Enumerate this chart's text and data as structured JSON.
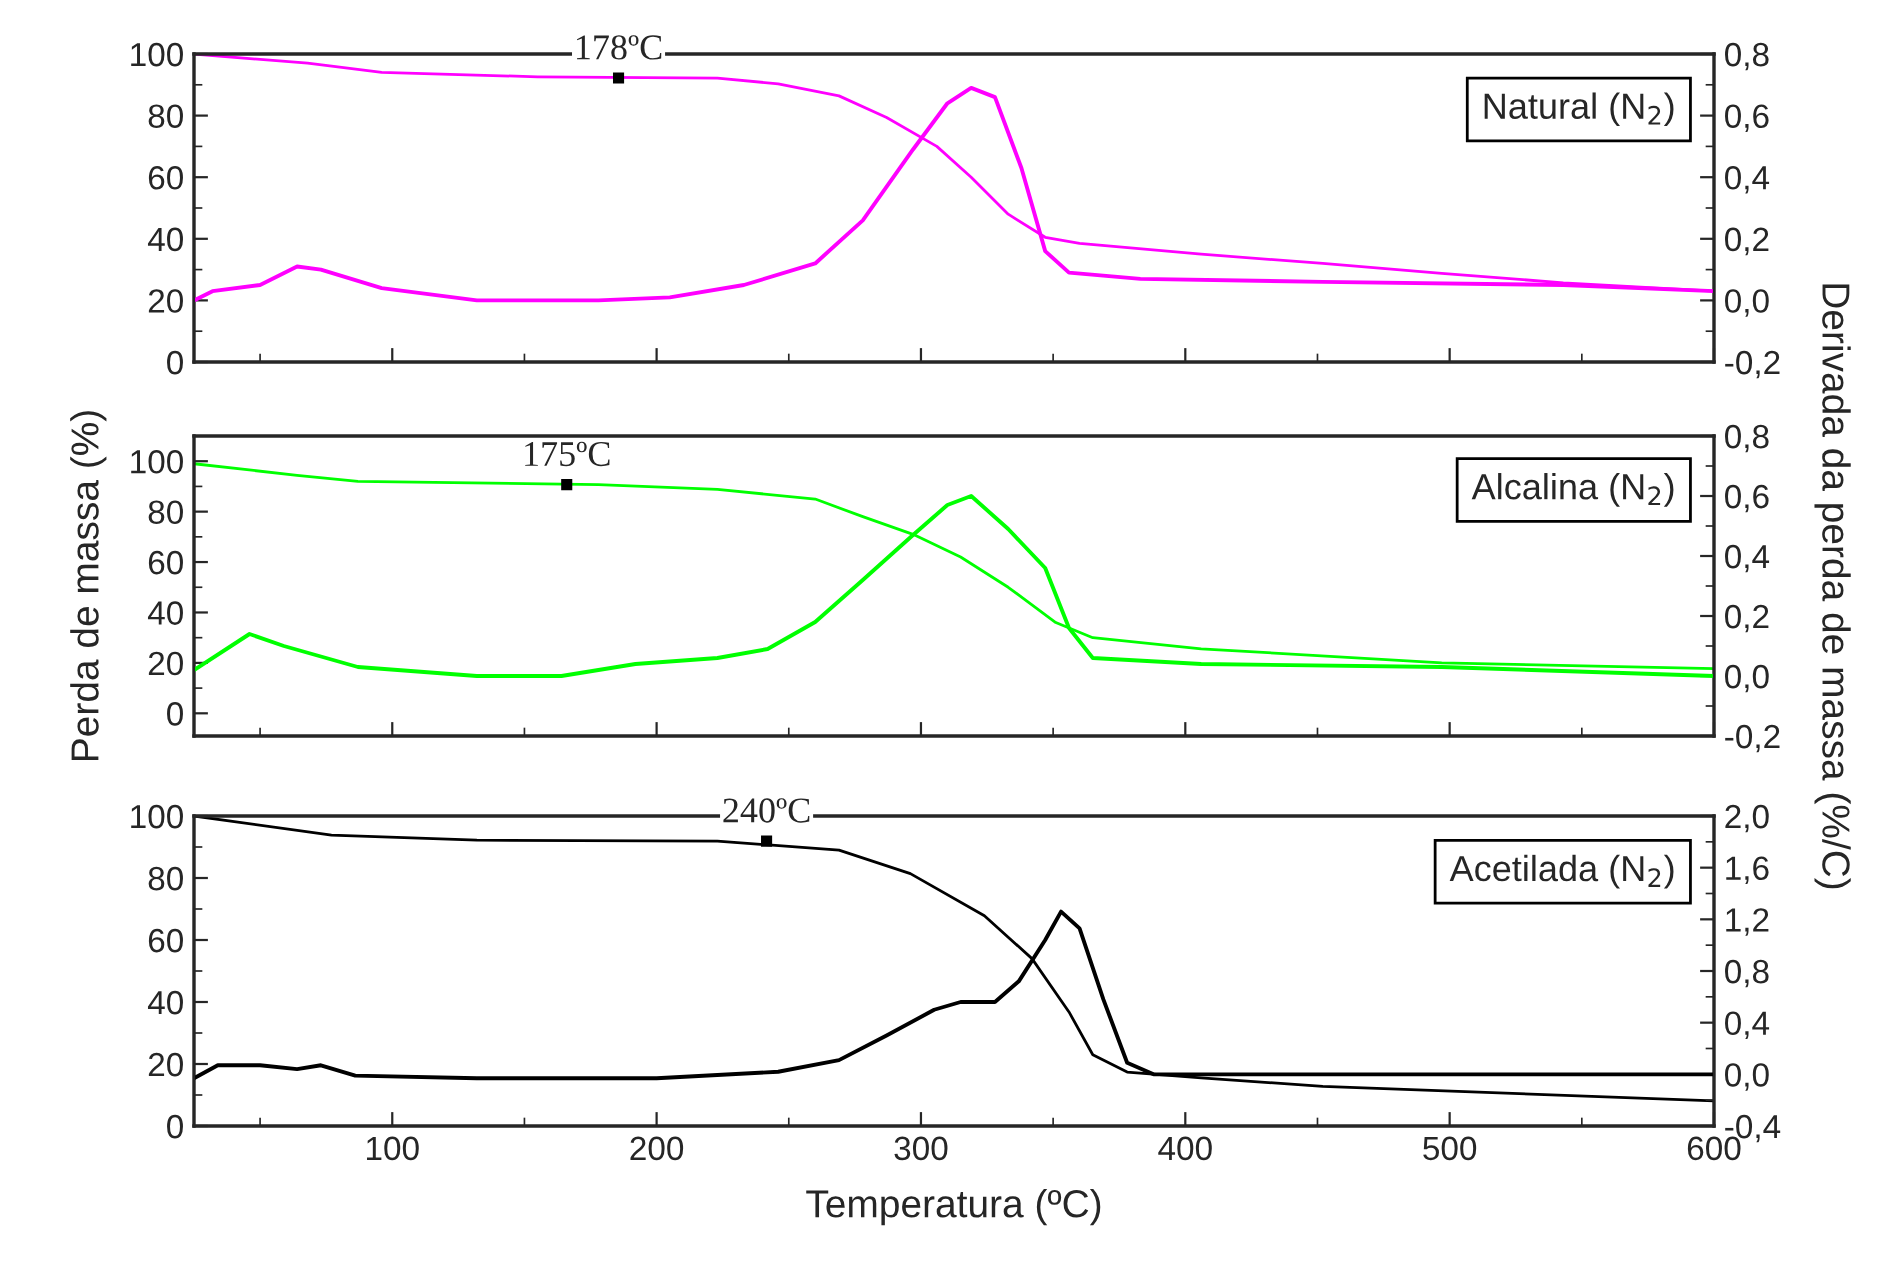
{
  "chart_data": [
    {
      "type": "line",
      "xlim": [
        25,
        600
      ],
      "xticks": [
        100,
        200,
        300,
        400,
        500,
        600
      ],
      "ylim": [
        0,
        100
      ],
      "yticks": [
        0,
        20,
        40,
        60,
        80,
        100
      ],
      "y2lim": [
        -0.2,
        0.8
      ],
      "y2ticks": [
        {
          "value": -0.2,
          "label": "-0,2"
        },
        {
          "value": 0,
          "label": "0,0"
        },
        {
          "value": 0.2,
          "label": "0,2"
        },
        {
          "value": 0.4,
          "label": "0,4"
        },
        {
          "value": 0.6,
          "label": "0,6"
        },
        {
          "value": 0.8,
          "label": "0,8"
        }
      ],
      "tick_labels": "y",
      "series": [
        {
          "color": "#ff00ff",
          "x": [
            25,
            68,
            96,
            155,
            223,
            246,
            269,
            287,
            306,
            319,
            333,
            347,
            360,
            406,
            452,
            497,
            543,
            600
          ],
          "values": [
            100,
            97,
            94,
            92.6,
            92.2,
            90.3,
            86.4,
            79.4,
            70,
            60,
            48,
            40.5,
            38.5,
            35,
            32,
            28.8,
            25.7,
            23
          ]
        },
        {
          "color": "#ff00ff",
          "axis": "y2",
          "x": [
            25,
            32,
            50,
            64,
            73,
            96,
            132,
            178,
            205,
            233,
            260,
            278,
            297,
            310,
            319,
            328,
            338,
            347,
            356,
            383,
            452,
            543,
            600
          ],
          "values": [
            0.0,
            0.03,
            0.05,
            0.11,
            0.1,
            0.04,
            0.0,
            0.0,
            0.01,
            0.05,
            0.12,
            0.26,
            0.49,
            0.64,
            0.69,
            0.66,
            0.43,
            0.16,
            0.09,
            0.07,
            0.06,
            0.05,
            0.03
          ]
        }
      ],
      "annotations": [
        {
          "text": "178ºC",
          "x": 185.6,
          "y": 92.2
        },
        "Natural (N$_{2}$)"
      ]
    },
    {
      "type": "line",
      "xlim": [
        25,
        600
      ],
      "xticks": [
        100,
        200,
        300,
        400,
        500,
        600
      ],
      "ylim": [
        -9,
        110
      ],
      "yticks": [
        0,
        20,
        40,
        60,
        80,
        100
      ],
      "y2lim": [
        -0.2,
        0.8
      ],
      "y2ticks": [
        {
          "value": -0.2,
          "label": "-0,2"
        },
        {
          "value": 0,
          "label": "0,0"
        },
        {
          "value": 0.2,
          "label": "0,2"
        },
        {
          "value": 0.4,
          "label": "0,4"
        },
        {
          "value": 0.6,
          "label": "0,6"
        },
        {
          "value": 0.8,
          "label": "0,8"
        }
      ],
      "tick_labels": "y",
      "ylabel": "Perda de massa (%)",
      "y2label": "Derivada da perda de massa (%/C)",
      "series": [
        {
          "color": "#00ff00",
          "x": [
            25,
            64,
            87,
            178,
            223,
            260,
            278,
            297,
            315,
            333,
            351,
            365,
            406,
            497,
            600
          ],
          "values": [
            99,
            94.4,
            92,
            90.7,
            88.8,
            85,
            78,
            71,
            62,
            50,
            36,
            30,
            25.6,
            20,
            17.7
          ]
        },
        {
          "color": "#00ff00",
          "axis": "y2",
          "x": [
            25,
            46,
            59,
            87,
            132,
            164,
            192,
            223,
            242,
            260,
            278,
            297,
            310,
            319,
            333,
            347,
            356,
            365,
            406,
            497,
            600
          ],
          "values": [
            0.02,
            0.14,
            0.1,
            0.03,
            0.0,
            0.0,
            0.04,
            0.06,
            0.09,
            0.18,
            0.32,
            0.47,
            0.57,
            0.6,
            0.49,
            0.36,
            0.16,
            0.06,
            0.04,
            0.03,
            0.0
          ]
        }
      ],
      "annotations": [
        {
          "text": "175ºC",
          "x": 166,
          "y": 90.7
        },
        "Alcalina (N$_{2}$)"
      ]
    },
    {
      "type": "line",
      "xlim": [
        25,
        600
      ],
      "xticks": [
        100,
        200,
        300,
        400,
        500,
        600
      ],
      "ylim": [
        0,
        100
      ],
      "yticks": [
        0,
        20,
        40,
        60,
        80,
        100
      ],
      "y2lim": [
        -0.4,
        2.0
      ],
      "y2ticks": [
        {
          "value": -0.4,
          "label": "-0,4"
        },
        {
          "value": 0,
          "label": "0,0"
        },
        {
          "value": 0.4,
          "label": "0,4"
        },
        {
          "value": 0.8,
          "label": "0,8"
        },
        {
          "value": 1.2,
          "label": "1,2"
        },
        {
          "value": 1.6,
          "label": "1,6"
        },
        {
          "value": 2.0,
          "label": "2,0"
        }
      ],
      "xlabel": "Temperatura (ºC)",
      "series": [
        {
          "color": "#000000",
          "x": [
            25,
            77,
            132,
            223,
            269,
            296,
            324,
            342,
            356,
            365,
            378,
            406,
            452,
            600
          ],
          "values": [
            100,
            93.8,
            92.2,
            91.9,
            89,
            81.4,
            67.8,
            54,
            36.8,
            23,
            17.4,
            15.5,
            12.8,
            8.1
          ]
        },
        {
          "color": "#000000",
          "axis": "y2",
          "x": [
            25,
            34,
            50,
            64,
            73,
            86,
            132,
            200,
            246,
            269,
            287,
            305,
            315,
            328,
            337,
            347,
            353,
            360,
            369,
            378,
            388,
            452,
            600
          ],
          "values": [
            -0.03,
            0.07,
            0.07,
            0.04,
            0.07,
            -0.01,
            -0.03,
            -0.03,
            0.02,
            0.11,
            0.3,
            0.5,
            0.56,
            0.56,
            0.72,
            1.04,
            1.26,
            1.13,
            0.58,
            0.09,
            0.0,
            0.0,
            0.0
          ]
        }
      ],
      "annotations": [
        {
          "text": "240ºC",
          "x": 241.6,
          "y": 91.9
        },
        "Acetilada (N$_{2}$)"
      ]
    }
  ]
}
